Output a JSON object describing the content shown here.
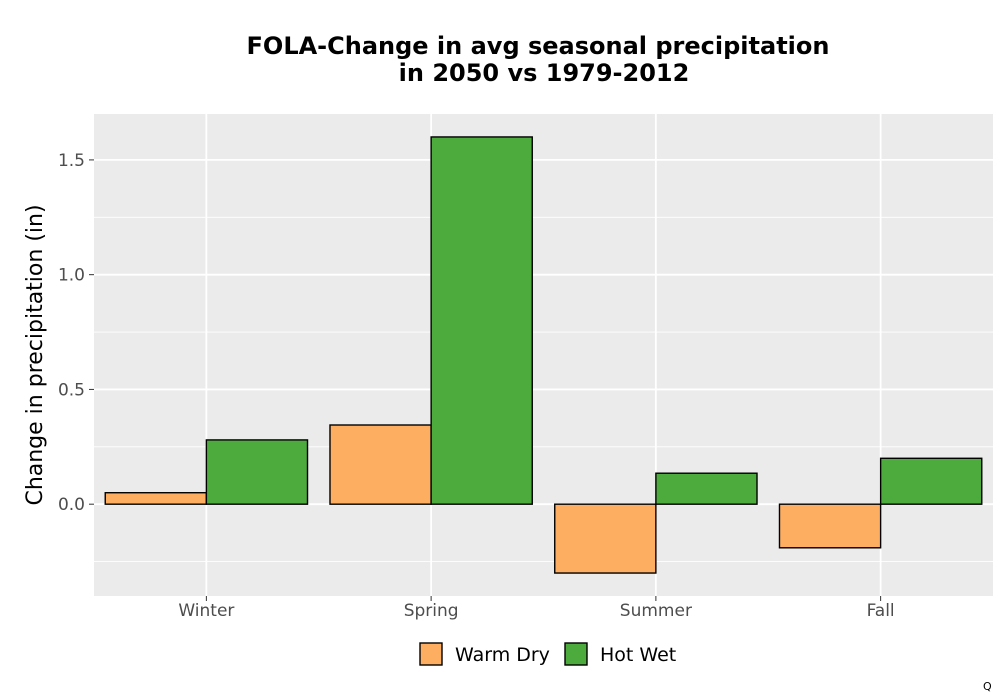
{
  "chart_data": {
    "type": "bar",
    "title_line1": "FOLA-Change in avg seasonal precipitation",
    "title_line2": "in 2050 vs 1979-2012",
    "xlabel": "",
    "ylabel": "Change in precipitation (in)",
    "categories": [
      "Winter",
      "Spring",
      "Summer",
      "Fall"
    ],
    "series": [
      {
        "name": "Warm Dry",
        "color": "#fdae61",
        "values": [
          0.05,
          0.345,
          -0.3,
          -0.19
        ]
      },
      {
        "name": "Hot Wet",
        "color": "#4daa3d",
        "values": [
          0.28,
          1.6,
          0.135,
          0.2
        ]
      }
    ],
    "ylim": [
      -0.4,
      1.7
    ],
    "yticks": [
      0.0,
      0.5,
      1.0,
      1.5
    ],
    "ytick_labels": [
      "0.0",
      "0.5",
      "1.0",
      "1.5"
    ],
    "grid": true,
    "legend_position": "bottom",
    "panel_background": "#ebebeb"
  },
  "corner_mark": "Q"
}
